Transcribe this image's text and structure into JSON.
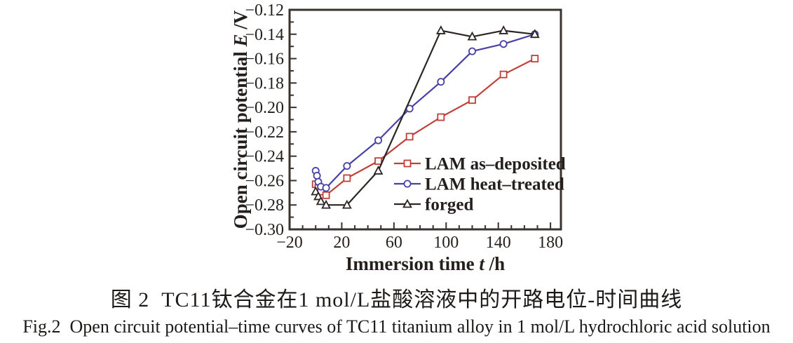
{
  "figure": {
    "caption_zh": "图 2  TC11钛合金在1 mol/L盐酸溶液中的开路电位-时间曲线",
    "caption_en": "Fig.2  Open circuit potential–time curves of TC11 titanium alloy in 1 mol/L hydrochloric acid solution"
  },
  "colors": {
    "frame": "#3a322e",
    "red_series": "#c04038",
    "blue_series": "#4741a5",
    "black_series": "#2b2624",
    "text": "#241f1d"
  },
  "chart_data": {
    "type": "line",
    "title": "",
    "xlabel": "Immersion time t /h",
    "ylabel": "Open circuit potential E /V",
    "xlabel_parts": {
      "prefix": "Immersion time ",
      "symbol": "t",
      "suffix": " /h"
    },
    "ylabel_parts": {
      "prefix": "Open circuit potential ",
      "symbol": "E",
      "suffix": " /V"
    },
    "xlim": [
      -20,
      188
    ],
    "ylim": [
      -0.3,
      -0.12
    ],
    "x_major_ticks": [
      -20,
      20,
      60,
      100,
      140,
      180
    ],
    "x_major_tick_labels": [
      "−20",
      "20",
      "60",
      "100",
      "140",
      "180"
    ],
    "x_minor_tick_step": 10,
    "y_major_ticks": [
      -0.12,
      -0.14,
      -0.16,
      -0.18,
      -0.2,
      -0.22,
      -0.24,
      -0.26,
      -0.28,
      -0.3
    ],
    "y_major_tick_labels": [
      "−0.12",
      "−0.14",
      "−0.16",
      "−0.18",
      "−0.20",
      "−0.22",
      "−0.24",
      "−0.26",
      "−0.28",
      "−0.30"
    ],
    "y_minor_ticks": [
      -0.13,
      -0.15,
      -0.17,
      -0.19,
      -0.21,
      -0.23,
      -0.25,
      -0.27,
      -0.29
    ],
    "grid": false,
    "legend_position": "inside lower right",
    "series": [
      {
        "name": "LAM as–deposited",
        "marker": "square",
        "color": "#c04038",
        "points": [
          [
            0,
            -0.263
          ],
          [
            2,
            -0.266
          ],
          [
            4,
            -0.269
          ],
          [
            8,
            -0.272
          ],
          [
            24,
            -0.258
          ],
          [
            48,
            -0.244
          ],
          [
            72,
            -0.224
          ],
          [
            96,
            -0.208
          ],
          [
            120,
            -0.194
          ],
          [
            144,
            -0.173
          ],
          [
            168,
            -0.16
          ]
        ]
      },
      {
        "name": "LAM heat–treated",
        "marker": "circle",
        "color": "#4741a5",
        "points": [
          [
            0,
            -0.252
          ],
          [
            1,
            -0.256
          ],
          [
            2,
            -0.261
          ],
          [
            4,
            -0.265
          ],
          [
            8,
            -0.266
          ],
          [
            24,
            -0.248
          ],
          [
            48,
            -0.227
          ],
          [
            72,
            -0.201
          ],
          [
            96,
            -0.179
          ],
          [
            120,
            -0.154
          ],
          [
            144,
            -0.148
          ],
          [
            168,
            -0.14
          ]
        ]
      },
      {
        "name": "forged",
        "marker": "triangle",
        "color": "#2b2624",
        "points": [
          [
            0,
            -0.269
          ],
          [
            2,
            -0.273
          ],
          [
            4,
            -0.277
          ],
          [
            8,
            -0.28
          ],
          [
            24,
            -0.28
          ],
          [
            48,
            -0.252
          ],
          [
            96,
            -0.137
          ],
          [
            120,
            -0.142
          ],
          [
            144,
            -0.137
          ],
          [
            168,
            -0.14
          ]
        ]
      }
    ]
  }
}
